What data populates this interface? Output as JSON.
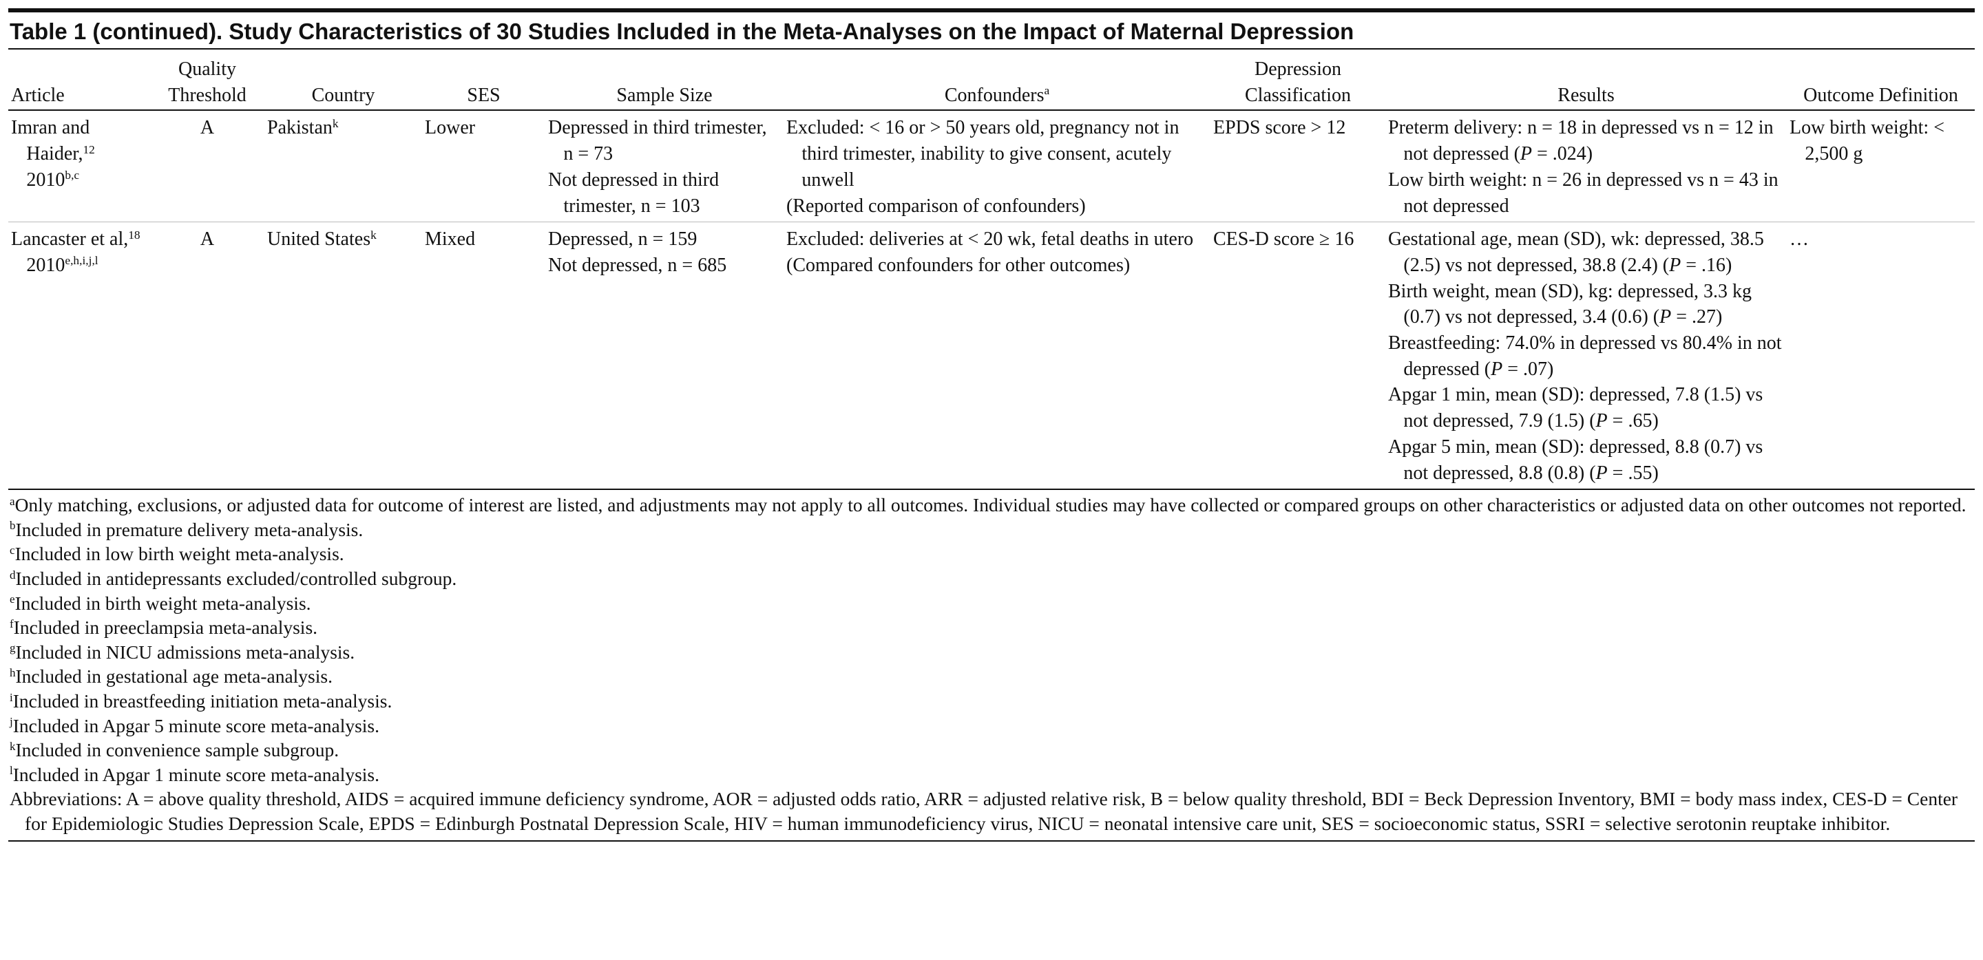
{
  "title": "Table 1 (continued). Study Characteristics of 30 Studies Included in the Meta-Analyses on the Impact of Maternal Depression",
  "table": {
    "headers": [
      [
        "Article"
      ],
      [
        "Quality Threshold"
      ],
      [
        "Country"
      ],
      [
        "SES"
      ],
      [
        "Sample Size"
      ],
      [
        [
          "Confounders",
          {
            "sup": "a"
          }
        ]
      ],
      [
        "Depression Classification"
      ],
      [
        "Results"
      ],
      [
        "Outcome Definition"
      ]
    ],
    "rows": [
      [
        [
          [
            "Imran and Haider,",
            {
              "sup": "12"
            },
            " 2010",
            {
              "sup": "b,c"
            }
          ]
        ],
        [
          "A"
        ],
        [
          [
            "Pakistan",
            {
              "sup": "k"
            }
          ]
        ],
        [
          "Lower"
        ],
        [
          "Depressed in third trimester, n = 73",
          "Not depressed in third trimester, n = 103"
        ],
        [
          "Excluded: < 16 or > 50 years old, pregnancy not in third trimester, inability to give consent, acutely unwell",
          "(Reported comparison of confounders)"
        ],
        [
          "EPDS score > 12"
        ],
        [
          [
            "Preterm delivery: n = 18 in depressed vs n = 12 in not depressed (",
            {
              "i": "P"
            },
            " = .024)"
          ],
          "Low birth weight: n = 26 in depressed vs n = 43 in not depressed"
        ],
        [
          "Low birth weight: < 2,500 g"
        ]
      ],
      [
        [
          [
            "Lancaster et al,",
            {
              "sup": "18"
            },
            " 2010",
            {
              "sup": "e,h,i,j,l"
            }
          ]
        ],
        [
          "A"
        ],
        [
          [
            "United States",
            {
              "sup": "k"
            }
          ]
        ],
        [
          "Mixed"
        ],
        [
          "Depressed, n = 159",
          "Not depressed, n = 685"
        ],
        [
          "Excluded: deliveries at < 20 wk, fetal deaths in utero",
          "(Compared confounders for other outcomes)"
        ],
        [
          "CES-D score ≥ 16"
        ],
        [
          [
            "Gestational age, mean (SD), wk: depressed, 38.5 (2.5) vs not depressed, 38.8 (2.4) (",
            {
              "i": "P"
            },
            " = .16)"
          ],
          [
            "Birth weight, mean (SD), kg: depressed, 3.3 kg (0.7) vs not depressed, 3.4 (0.6) (",
            {
              "i": "P"
            },
            " = .27)"
          ],
          [
            "Breastfeeding: 74.0% in depressed vs 80.4% in not depressed (",
            {
              "i": "P"
            },
            " = .07)"
          ],
          [
            "Apgar 1 min, mean (SD): depressed, 7.8 (1.5) vs not depressed, 7.9 (1.5) (",
            {
              "i": "P"
            },
            " = .65)"
          ],
          [
            "Apgar 5 min, mean (SD): depressed, 8.8 (0.7) vs not depressed, 8.8 (0.8) (",
            {
              "i": "P"
            },
            " = .55)"
          ]
        ],
        [
          "…"
        ]
      ]
    ]
  },
  "footnotes": [
    [
      {
        "sup": "a"
      },
      "Only matching, exclusions, or adjusted data for outcome of interest are listed, and adjustments may not apply to all outcomes. Individual studies may have collected or compared groups on other characteristics or adjusted data on other outcomes not reported."
    ],
    [
      {
        "sup": "b"
      },
      "Included in premature delivery meta-analysis."
    ],
    [
      {
        "sup": "c"
      },
      "Included in low birth weight meta-analysis."
    ],
    [
      {
        "sup": "d"
      },
      "Included in antidepressants excluded/controlled subgroup."
    ],
    [
      {
        "sup": "e"
      },
      "Included in birth weight meta-analysis."
    ],
    [
      {
        "sup": "f"
      },
      "Included in preeclampsia meta-analysis."
    ],
    [
      {
        "sup": "g"
      },
      "Included in NICU admissions meta-analysis."
    ],
    [
      {
        "sup": "h"
      },
      "Included in gestational age meta-analysis."
    ],
    [
      {
        "sup": "i"
      },
      "Included in breastfeeding initiation meta-analysis."
    ],
    [
      {
        "sup": "j"
      },
      "Included in Apgar 5 minute score meta-analysis."
    ],
    [
      {
        "sup": "k"
      },
      "Included in convenience sample subgroup."
    ],
    [
      {
        "sup": "l"
      },
      "Included in Apgar 1 minute score meta-analysis."
    ],
    "Abbreviations: A = above quality threshold, AIDS = acquired immune deficiency syndrome, AOR = adjusted odds ratio, ARR = adjusted relative risk, B = below quality threshold, BDI = Beck Depression Inventory, BMI = body mass index, CES-D = Center for Epidemiologic Studies Depression Scale, EPDS = Edinburgh Postnatal Depression Scale, HIV = human immunodeficiency virus, NICU = neonatal intensive care unit, SES = socioeconomic status, SSRI = selective serotonin reuptake inhibitor."
  ]
}
